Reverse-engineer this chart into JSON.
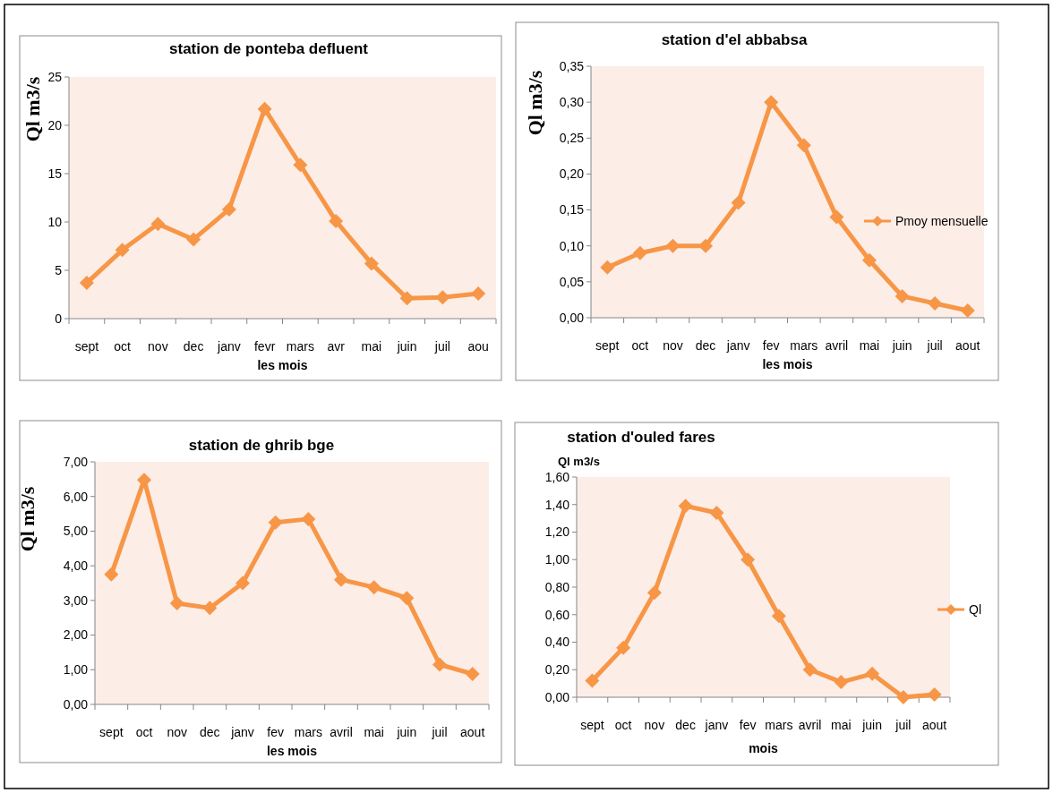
{
  "chart_data": [
    {
      "type": "line",
      "title": "station de ponteba defluent",
      "xlabel": "les mois",
      "ylabel": "Ql m3/s",
      "categories": [
        "sept",
        "oct",
        "nov",
        "dec",
        "janv",
        "fevr",
        "mars",
        "avr",
        "mai",
        "juin",
        "juil",
        "aou"
      ],
      "series": [
        {
          "color": "#f79646",
          "values": [
            3.7,
            7.1,
            9.8,
            8.2,
            11.3,
            21.7,
            15.9,
            10.1,
            5.7,
            2.1,
            2.2,
            2.6
          ]
        }
      ],
      "ylim": [
        0,
        25
      ],
      "yticks": [
        0,
        5,
        10,
        15,
        20,
        25
      ],
      "marker": "diamond",
      "grid": false,
      "legend": false
    },
    {
      "type": "line",
      "title": "station d'el abbabsa",
      "xlabel": "les mois",
      "ylabel": "Ql m3/s",
      "categories": [
        "sept",
        "oct",
        "nov",
        "dec",
        "janv",
        "fev",
        "mars",
        "avril",
        "mai",
        "juin",
        "juil",
        "aout"
      ],
      "series": [
        {
          "name": "Pmoy mensuelle",
          "color": "#f79646",
          "values": [
            0.07,
            0.09,
            0.1,
            0.1,
            0.16,
            0.3,
            0.24,
            0.14,
            0.08,
            0.03,
            0.02,
            0.01
          ]
        }
      ],
      "ylim": [
        0,
        0.35
      ],
      "yticks": [
        {
          "value": 0,
          "label": "0,00"
        },
        {
          "value": 0.05,
          "label": "0,05"
        },
        {
          "value": 0.1,
          "label": "0,10"
        },
        {
          "value": 0.15,
          "label": "0,15"
        },
        {
          "value": 0.2,
          "label": "0,20"
        },
        {
          "value": 0.25,
          "label": "0,25"
        },
        {
          "value": 0.3,
          "label": "0,30"
        },
        {
          "value": 0.35,
          "label": "0,35"
        }
      ],
      "marker": "diamond",
      "grid": false,
      "legend": "right"
    },
    {
      "type": "line",
      "title": "station de ghrib bge",
      "xlabel": "les mois",
      "ylabel": "Ql m3/s",
      "categories": [
        "sept",
        "oct",
        "nov",
        "dec",
        "janv",
        "fev",
        "mars",
        "avril",
        "mai",
        "juin",
        "juil",
        "aout"
      ],
      "series": [
        {
          "color": "#f79646",
          "values": [
            3.75,
            6.48,
            2.92,
            2.78,
            3.5,
            5.25,
            5.35,
            3.6,
            3.38,
            3.07,
            1.15,
            0.88
          ]
        }
      ],
      "ylim": [
        0,
        7
      ],
      "yticks": [
        {
          "value": 0,
          "label": "0,00"
        },
        {
          "value": 1,
          "label": "1,00"
        },
        {
          "value": 2,
          "label": "2,00"
        },
        {
          "value": 3,
          "label": "3,00"
        },
        {
          "value": 4,
          "label": "4,00"
        },
        {
          "value": 5,
          "label": "5,00"
        },
        {
          "value": 6,
          "label": "6,00"
        },
        {
          "value": 7,
          "label": "7,00"
        }
      ],
      "marker": "diamond",
      "grid": false,
      "legend": false
    },
    {
      "type": "line",
      "title": "station d'ouled fares",
      "xlabel": "mois",
      "ylabel": "Ql m3/s",
      "categories": [
        "sept",
        "oct",
        "nov",
        "dec",
        "janv",
        "fev",
        "mars",
        "avril",
        "mai",
        "juin",
        "juil",
        "aout"
      ],
      "series": [
        {
          "name": "Ql",
          "color": "#f79646",
          "values": [
            0.12,
            0.36,
            0.76,
            1.39,
            1.34,
            1.0,
            0.59,
            0.2,
            0.11,
            0.17,
            0.0,
            0.02
          ]
        }
      ],
      "ylim": [
        0,
        1.6
      ],
      "yticks": [
        {
          "value": 0,
          "label": "0,00"
        },
        {
          "value": 0.2,
          "label": "0,20"
        },
        {
          "value": 0.4,
          "label": "0,40"
        },
        {
          "value": 0.6,
          "label": "0,60"
        },
        {
          "value": 0.8,
          "label": "0,80"
        },
        {
          "value": 1,
          "label": "1,00"
        },
        {
          "value": 1.2,
          "label": "1,20"
        },
        {
          "value": 1.4,
          "label": "1,40"
        },
        {
          "value": 1.6,
          "label": "1,60"
        }
      ],
      "marker": "diamond",
      "grid": false,
      "legend": "right"
    }
  ]
}
